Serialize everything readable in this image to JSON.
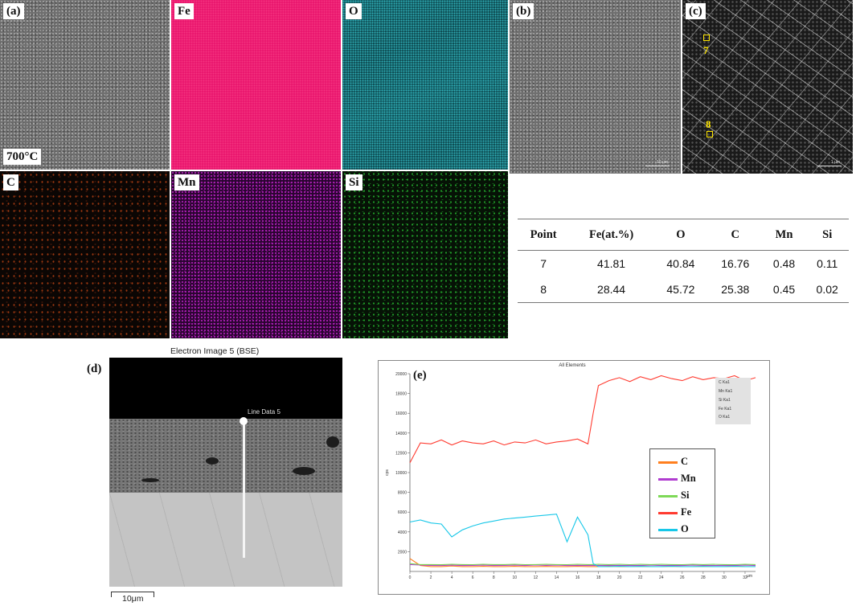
{
  "panels": {
    "a_label": "(a)",
    "a_temp": "700°C",
    "fe_label": "Fe",
    "o_label": "O",
    "c_label": "C",
    "mn_label": "Mn",
    "si_label": "Si",
    "b_label": "(b)",
    "c_panel_label": "(c)",
    "b_scale": "10 µm",
    "c_scale": "1 µm",
    "point7": "7",
    "point8": "8"
  },
  "table": {
    "headers": [
      "Point",
      "Fe(at.%)",
      "O",
      "C",
      "Mn",
      "Si"
    ],
    "rows": [
      [
        "7",
        "41.81",
        "40.84",
        "16.76",
        "0.48",
        "0.11"
      ],
      [
        "8",
        "28.44",
        "45.72",
        "25.38",
        "0.45",
        "0.02"
      ]
    ]
  },
  "bse": {
    "panel_label": "(d)",
    "title": "Electron Image 5 (BSE)",
    "line_label": "Line Data 5",
    "scale_label": "10μm"
  },
  "chart_panel_label": "(e)",
  "chart_data": {
    "type": "line",
    "title": "All Elements",
    "xlabel": "μm",
    "ylabel": "cps",
    "xlim": [
      0,
      33
    ],
    "ylim": [
      0,
      20000
    ],
    "x_ticks": [
      0,
      2,
      4,
      6,
      8,
      10,
      12,
      14,
      16,
      18,
      20,
      22,
      24,
      26,
      28,
      30,
      32
    ],
    "y_ticks": [
      2000,
      4000,
      6000,
      8000,
      10000,
      12000,
      14000,
      16000,
      18000,
      20000
    ],
    "y_tick_labels": [
      "2000",
      "4000",
      "6000",
      "8000",
      "10000",
      "12000",
      "14000",
      "16000",
      "18000",
      "20000"
    ],
    "x": [
      0,
      1,
      2,
      3,
      4,
      5,
      6,
      7,
      8,
      9,
      10,
      11,
      12,
      13,
      14,
      15,
      16,
      17,
      17.5,
      18,
      19,
      20,
      21,
      22,
      23,
      24,
      25,
      26,
      27,
      28,
      29,
      30,
      31,
      32,
      33
    ],
    "series": [
      {
        "name": "C",
        "color": "#ff7f1e",
        "values": [
          1300,
          600,
          500,
          500,
          550,
          500,
          500,
          520,
          500,
          500,
          520,
          500,
          500,
          510,
          500,
          500,
          520,
          500,
          500,
          500,
          520,
          500,
          500,
          510,
          500,
          500,
          520,
          500,
          500,
          510,
          500,
          500,
          520,
          500,
          500
        ]
      },
      {
        "name": "Mn",
        "color": "#b03cd0",
        "values": [
          700,
          650,
          620,
          600,
          640,
          600,
          620,
          640,
          600,
          620,
          640,
          600,
          650,
          620,
          640,
          600,
          620,
          600,
          600,
          600,
          620,
          600,
          620,
          600,
          640,
          600,
          620,
          600,
          640,
          620,
          600,
          620,
          600,
          640,
          600
        ]
      },
      {
        "name": "Si",
        "color": "#7ed957",
        "values": [
          800,
          700,
          700,
          680,
          720,
          700,
          690,
          720,
          700,
          700,
          720,
          690,
          700,
          720,
          700,
          690,
          720,
          700,
          700,
          720,
          700,
          720,
          690,
          720,
          700,
          720,
          700,
          690,
          720,
          700,
          720,
          700,
          690,
          720,
          700
        ]
      },
      {
        "name": "Fe",
        "color": "#ff3b30",
        "values": [
          11000,
          13000,
          12900,
          13300,
          12800,
          13200,
          13000,
          12900,
          13200,
          12800,
          13100,
          13000,
          13300,
          12900,
          13100,
          13200,
          13400,
          12900,
          16000,
          18800,
          19300,
          19600,
          19200,
          19700,
          19400,
          19800,
          19500,
          19300,
          19700,
          19400,
          19600,
          19500,
          19800,
          19300,
          19600
        ]
      },
      {
        "name": "O",
        "color": "#17c7e8",
        "values": [
          5000,
          5200,
          4900,
          4800,
          3500,
          4200,
          4600,
          4900,
          5100,
          5300,
          5400,
          5500,
          5600,
          5700,
          5800,
          3000,
          5500,
          3700,
          800,
          500,
          500,
          520,
          500,
          510,
          500,
          500,
          520,
          500,
          500,
          510,
          500,
          500,
          520,
          500,
          500
        ]
      }
    ],
    "mini_legend": [
      "C Ka1",
      "Mn Ka1",
      "Si Ka1",
      "Fe Ka1",
      "O Ka1"
    ],
    "grid": false,
    "legend_position": "right"
  }
}
